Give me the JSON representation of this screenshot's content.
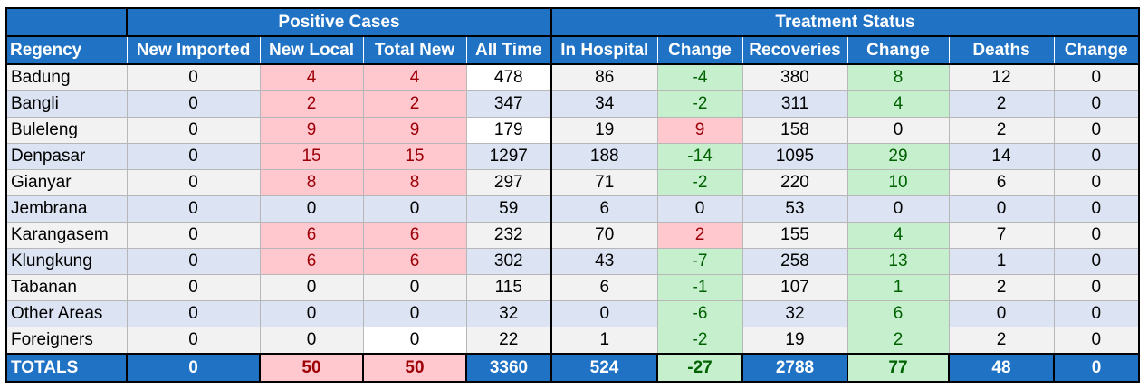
{
  "group_headers": {
    "positive": "Positive Cases",
    "treatment": "Treatment Status"
  },
  "columns": [
    "Regency",
    "New Imported",
    "New Local",
    "Total New",
    "All Time",
    "In Hospital",
    "Change",
    "Recoveries",
    "Change",
    "Deaths",
    "Change"
  ],
  "rows": [
    {
      "region": "Badung",
      "new_imported": "0",
      "new_local": "4",
      "total_new": "4",
      "all_time": "478",
      "in_hospital": "86",
      "hosp_change": "-4",
      "recoveries": "380",
      "rec_change": "8",
      "deaths": "12",
      "death_change": "0"
    },
    {
      "region": "Bangli",
      "new_imported": "0",
      "new_local": "2",
      "total_new": "2",
      "all_time": "347",
      "in_hospital": "34",
      "hosp_change": "-2",
      "recoveries": "311",
      "rec_change": "4",
      "deaths": "2",
      "death_change": "0"
    },
    {
      "region": "Buleleng",
      "new_imported": "0",
      "new_local": "9",
      "total_new": "9",
      "all_time": "179",
      "in_hospital": "19",
      "hosp_change": "9",
      "recoveries": "158",
      "rec_change": "0",
      "deaths": "2",
      "death_change": "0"
    },
    {
      "region": "Denpasar",
      "new_imported": "0",
      "new_local": "15",
      "total_new": "15",
      "all_time": "1297",
      "in_hospital": "188",
      "hosp_change": "-14",
      "recoveries": "1095",
      "rec_change": "29",
      "deaths": "14",
      "death_change": "0"
    },
    {
      "region": "Gianyar",
      "new_imported": "0",
      "new_local": "8",
      "total_new": "8",
      "all_time": "297",
      "in_hospital": "71",
      "hosp_change": "-2",
      "recoveries": "220",
      "rec_change": "10",
      "deaths": "6",
      "death_change": "0"
    },
    {
      "region": "Jembrana",
      "new_imported": "0",
      "new_local": "0",
      "total_new": "0",
      "all_time": "59",
      "in_hospital": "6",
      "hosp_change": "0",
      "recoveries": "53",
      "rec_change": "0",
      "deaths": "0",
      "death_change": "0"
    },
    {
      "region": "Karangasem",
      "new_imported": "0",
      "new_local": "6",
      "total_new": "6",
      "all_time": "232",
      "in_hospital": "70",
      "hosp_change": "2",
      "recoveries": "155",
      "rec_change": "4",
      "deaths": "7",
      "death_change": "0"
    },
    {
      "region": "Klungkung",
      "new_imported": "0",
      "new_local": "6",
      "total_new": "6",
      "all_time": "302",
      "in_hospital": "43",
      "hosp_change": "-7",
      "recoveries": "258",
      "rec_change": "13",
      "deaths": "1",
      "death_change": "0"
    },
    {
      "region": "Tabanan",
      "new_imported": "0",
      "new_local": "0",
      "total_new": "0",
      "all_time": "115",
      "in_hospital": "6",
      "hosp_change": "-1",
      "recoveries": "107",
      "rec_change": "1",
      "deaths": "2",
      "death_change": "0"
    },
    {
      "region": "Other Areas",
      "new_imported": "0",
      "new_local": "0",
      "total_new": "0",
      "all_time": "32",
      "in_hospital": "0",
      "hosp_change": "-6",
      "recoveries": "32",
      "rec_change": "6",
      "deaths": "0",
      "death_change": "0"
    },
    {
      "region": "Foreigners",
      "new_imported": "0",
      "new_local": "0",
      "total_new": "0",
      "all_time": "22",
      "in_hospital": "1",
      "hosp_change": "-2",
      "recoveries": "19",
      "rec_change": "2",
      "deaths": "2",
      "death_change": "0"
    }
  ],
  "totals": {
    "region": "TOTALS",
    "new_imported": "0",
    "new_local": "50",
    "total_new": "50",
    "all_time": "3360",
    "in_hospital": "524",
    "hosp_change": "-27",
    "recoveries": "2788",
    "rec_change": "77",
    "deaths": "48",
    "death_change": "0"
  },
  "colors": {
    "header_blue": "#1f72c4",
    "increase_bg": "#ffc7ce",
    "increase_text": "#9c0006",
    "decrease_bg": "#c6efce",
    "decrease_text": "#006100"
  }
}
